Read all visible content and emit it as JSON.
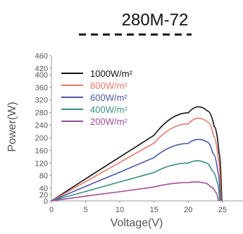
{
  "chart_data": {
    "type": "line",
    "title": "280M-72",
    "xlabel": "Voltage(V)",
    "ylabel": "Power(W)",
    "xlim": [
      0,
      28
    ],
    "ylim": [
      0,
      460
    ],
    "xticks": [
      0,
      5,
      10,
      15,
      20,
      25
    ],
    "yticks": [
      0,
      20,
      40,
      80,
      120,
      160,
      200,
      240,
      280,
      320,
      360,
      400,
      420,
      460
    ],
    "grid": false,
    "legend_position": "top-left",
    "series": [
      {
        "name": "1000W/m²",
        "color": "#111111",
        "x": [
          0,
          5,
          10,
          15,
          20,
          21.5,
          22.8,
          23.8,
          24.5,
          24.9
        ],
        "y": [
          0,
          70,
          139,
          208,
          279,
          298,
          285,
          235,
          150,
          0
        ]
      },
      {
        "name": "800W/m²",
        "color": "#e8786a",
        "x": [
          0,
          5,
          10,
          15,
          20,
          21.5,
          22.8,
          23.7,
          24.4,
          24.8
        ],
        "y": [
          0,
          61,
          122,
          183,
          244,
          262,
          250,
          205,
          130,
          0
        ]
      },
      {
        "name": "600W/m²",
        "color": "#4a55a8",
        "x": [
          0,
          5,
          10,
          15,
          20,
          21.5,
          22.7,
          23.6,
          24.3,
          24.7
        ],
        "y": [
          0,
          46,
          91,
          137,
          182,
          195,
          187,
          150,
          95,
          0
        ]
      },
      {
        "name": "400W/m²",
        "color": "#3a8f80",
        "x": [
          0,
          5,
          10,
          15,
          20,
          21.3,
          22.5,
          23.5,
          24.2,
          24.6
        ],
        "y": [
          0,
          30,
          60,
          90,
          120,
          127,
          121,
          95,
          60,
          0
        ]
      },
      {
        "name": "200W/m²",
        "color": "#a04a9e",
        "x": [
          0,
          5,
          10,
          15,
          20,
          21.0,
          22.3,
          23.3,
          24.0,
          24.4
        ],
        "y": [
          0,
          15,
          29,
          44,
          58,
          60,
          57,
          44,
          27,
          0
        ]
      }
    ]
  }
}
